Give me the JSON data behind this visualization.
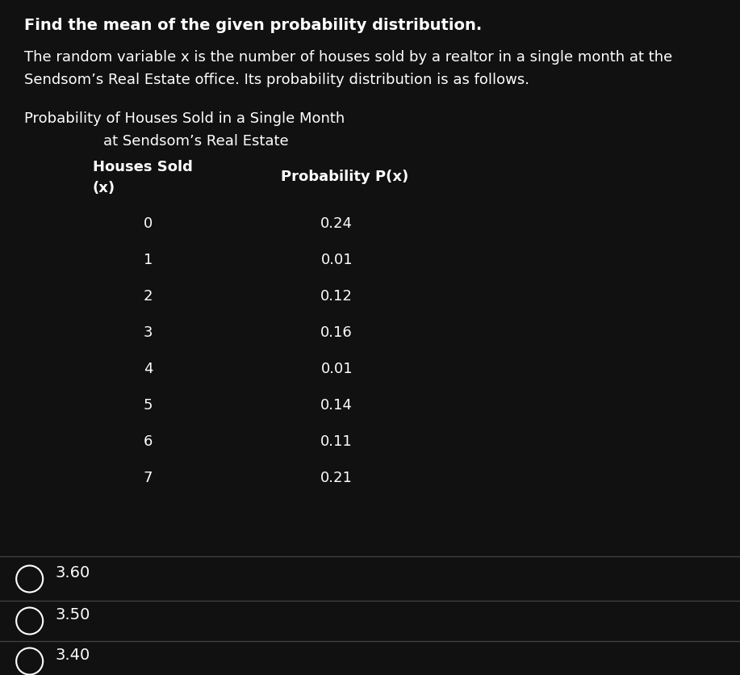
{
  "title_bold": "Find the mean of the given probability distribution.",
  "body_line1": "The random variable x is the number of houses sold by a realtor in a single month at the",
  "body_line2": "Sendsom’s Real Estate office. Its probability distribution is as follows.",
  "table_title_line1": "Probability of Houses Sold in a Single Month",
  "table_title_line2": "at Sendsom’s Real Estate",
  "col1_header_line1": "Houses Sold",
  "col1_header_line2": "(x)",
  "col2_header": "Probability P(x)",
  "houses_sold": [
    0,
    1,
    2,
    3,
    4,
    5,
    6,
    7
  ],
  "probabilities": [
    "0.24",
    "0.01",
    "0.12",
    "0.16",
    "0.01",
    "0.14",
    "0.11",
    "0.21"
  ],
  "answer_choices": [
    "3.60",
    "3.50",
    "3.40"
  ],
  "bg_color": "#111111",
  "text_color": "#ffffff",
  "separator_color": "#444444",
  "title_fontsize": 14,
  "body_fontsize": 13,
  "table_title_fontsize": 13,
  "header_fontsize": 13,
  "data_fontsize": 13,
  "answer_fontsize": 14,
  "fig_width": 9.17,
  "fig_height": 8.37,
  "dpi": 100
}
